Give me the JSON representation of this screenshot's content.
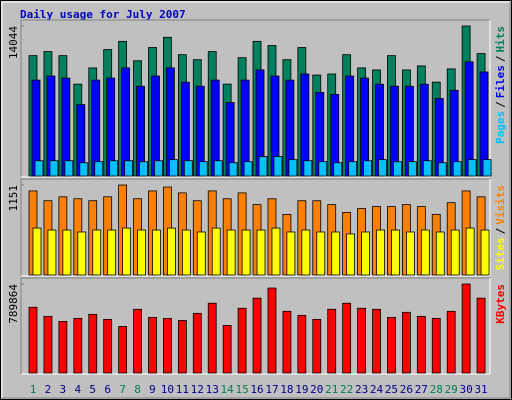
{
  "title": "Daily usage for July 2007",
  "legend_separator": "/",
  "chart_data": [
    {
      "type": "bar",
      "ylim": [
        0,
        14044
      ],
      "yticks": [
        14044
      ],
      "series": [
        {
          "name": "Hits",
          "color": "#00805c",
          "values": [
            11270,
            11650,
            11270,
            8600,
            10120,
            11840,
            12610,
            10790,
            12030,
            12990,
            11360,
            10890,
            11650,
            8600,
            11080,
            12610,
            12220,
            10890,
            12030,
            9450,
            9550,
            11360,
            10120,
            9930,
            11270,
            9930,
            10310,
            8790,
            10030,
            14044,
            11460
          ]
        },
        {
          "name": "Files",
          "color": "#0000ff",
          "values": [
            8977,
            9359,
            9168,
            6685,
            8977,
            9168,
            10123,
            8404,
            9359,
            10123,
            8786,
            8404,
            8977,
            6876,
            8977,
            9932,
            9359,
            8977,
            9550,
            7831,
            7640,
            9359,
            9168,
            8595,
            8404,
            8404,
            8595,
            7258,
            8022,
            10696,
            9741
          ]
        },
        {
          "name": "Pages",
          "color": "#00c0ff",
          "values": [
            1430,
            1430,
            1430,
            1240,
            1340,
            1430,
            1430,
            1340,
            1430,
            1530,
            1430,
            1340,
            1430,
            1240,
            1340,
            1820,
            1820,
            1530,
            1430,
            1340,
            1240,
            1340,
            1430,
            1530,
            1340,
            1340,
            1430,
            1240,
            1340,
            1530,
            1530
          ]
        }
      ]
    },
    {
      "type": "bar",
      "ylim": [
        0,
        1151
      ],
      "yticks": [
        1151
      ],
      "series": [
        {
          "name": "Visits",
          "color": "#ff8000",
          "values": [
            1075,
            950,
            1000,
            975,
            950,
            1000,
            1151,
            975,
            1075,
            1125,
            1050,
            950,
            1075,
            975,
            1050,
            900,
            975,
            775,
            950,
            950,
            900,
            800,
            850,
            875,
            875,
            900,
            875,
            775,
            925,
            1075,
            1000
          ]
        },
        {
          "name": "Sites",
          "color": "#ffff00",
          "values": [
            600,
            575,
            575,
            550,
            575,
            575,
            600,
            575,
            575,
            600,
            575,
            550,
            600,
            575,
            575,
            575,
            600,
            550,
            575,
            550,
            550,
            525,
            550,
            575,
            575,
            550,
            575,
            550,
            575,
            600,
            575
          ]
        }
      ]
    },
    {
      "type": "bar",
      "ylim": [
        0,
        789864
      ],
      "yticks": [
        789864
      ],
      "categories": [
        "1",
        "2",
        "3",
        "4",
        "5",
        "6",
        "7",
        "8",
        "9",
        "10",
        "11",
        "12",
        "13",
        "14",
        "15",
        "16",
        "17",
        "18",
        "19",
        "20",
        "21",
        "22",
        "23",
        "24",
        "25",
        "26",
        "27",
        "28",
        "29",
        "30",
        "31"
      ],
      "weekend_days": [
        "1",
        "7",
        "8",
        "14",
        "15",
        "21",
        "22",
        "28",
        "29"
      ],
      "label_color": "#00008b",
      "weekend_label_color": "#00805c",
      "series": [
        {
          "name": "KBytes",
          "color": "#ff0000",
          "values": [
            583440,
            502656,
            457776,
            484704,
            520608,
            475728,
            412896,
            565488,
            493680,
            484704,
            466752,
            529584,
            619344,
            421872,
            574464,
            664224,
            753984,
            547536,
            511632,
            475728,
            565488,
            619344,
            574464,
            565488,
            493680,
            538560,
            502656,
            484704,
            547536,
            789864,
            664224
          ]
        }
      ]
    }
  ]
}
